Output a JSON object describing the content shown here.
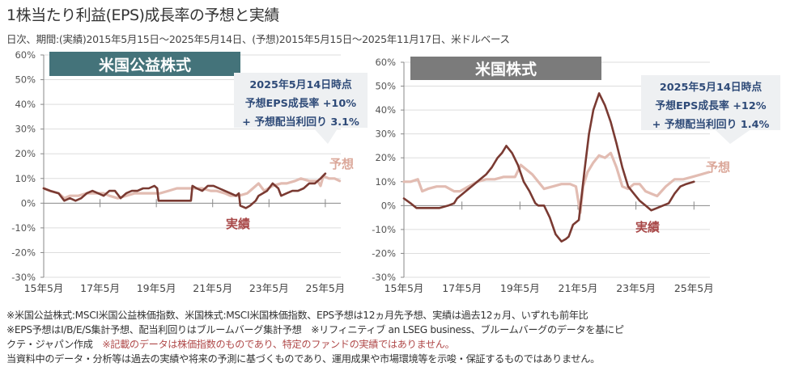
{
  "header": {
    "title": "1株当たり利益(EPS)成長率の予想と実績",
    "subtitle": "日次、期間:(実績)2015年5月15日～2025年5月14日、(予想)2015年5月15日～2025年11月17日、米ドルベース"
  },
  "colors": {
    "actual": "#7a3a32",
    "forecast": "#e2bcb2",
    "utilities_banner": "#44737a",
    "us_banner": "#7b7b7b",
    "callout_text": "#2e4a78",
    "callout_bg": "#eef0f2",
    "label_actual": "#a84848",
    "label_forecast": "#dba89a"
  },
  "chart_data": [
    {
      "type": "line",
      "title": "米国公益株式",
      "ylim": [
        -30,
        60
      ],
      "yticks": [
        "60%",
        "50%",
        "40%",
        "30%",
        "20%",
        "10%",
        "0%",
        "-10%",
        "-20%",
        "-30%"
      ],
      "ytick_values": [
        60,
        50,
        40,
        30,
        20,
        10,
        0,
        -10,
        -20,
        -30
      ],
      "xticks": [
        "15年5月",
        "17年5月",
        "19年5月",
        "21年5月",
        "23年5月",
        "25年5月"
      ],
      "xtick_values": [
        2015.37,
        2017.37,
        2019.37,
        2021.37,
        2023.37,
        2025.37
      ],
      "xlim": [
        2015.37,
        2025.92
      ],
      "callout": {
        "date": "2025年5月14日時点",
        "eps": "予想EPS成長率 +10%",
        "dividend": "+ 予想配当利回り 3.1%"
      },
      "series": [
        {
          "name": "実績",
          "x": [
            2015.37,
            2015.6,
            2015.9,
            2016.1,
            2016.3,
            2016.5,
            2016.7,
            2016.9,
            2017.1,
            2017.3,
            2017.5,
            2017.7,
            2017.9,
            2018.1,
            2018.3,
            2018.5,
            2018.7,
            2018.9,
            2019.1,
            2019.3,
            2019.4,
            2019.45,
            2019.7,
            2020.0,
            2020.2,
            2020.4,
            2020.6,
            2020.65,
            2020.8,
            2021.0,
            2021.2,
            2021.4,
            2021.6,
            2021.8,
            2022.0,
            2022.2,
            2022.3,
            2022.35,
            2022.55,
            2022.7,
            2022.9,
            2023.0,
            2023.3,
            2023.5,
            2023.7,
            2023.8,
            2024.0,
            2024.2,
            2024.4,
            2024.6,
            2024.8,
            2025.0,
            2025.1,
            2025.2,
            2025.37
          ],
          "values": [
            6,
            5,
            4,
            1,
            2,
            1,
            2,
            4,
            5,
            4,
            3,
            5,
            5,
            2,
            4,
            5,
            5,
            6,
            6,
            7,
            6,
            1,
            1,
            1,
            1,
            1,
            1,
            7,
            6,
            5,
            7,
            7,
            6,
            5,
            4,
            3,
            4,
            -1,
            -2,
            -1,
            1,
            3,
            5,
            8,
            6,
            3,
            4,
            5,
            5,
            6,
            8,
            8,
            9,
            10,
            12
          ]
        },
        {
          "name": "予想",
          "x": [
            2015.37,
            2015.6,
            2015.9,
            2016.1,
            2016.3,
            2016.6,
            2016.9,
            2017.2,
            2017.5,
            2017.7,
            2018.0,
            2018.3,
            2018.6,
            2018.9,
            2019.2,
            2019.5,
            2019.8,
            2020.1,
            2020.4,
            2020.7,
            2021.0,
            2021.3,
            2021.5,
            2021.8,
            2022.0,
            2022.3,
            2022.6,
            2022.8,
            2023.0,
            2023.2,
            2023.5,
            2023.8,
            2024.0,
            2024.3,
            2024.5,
            2024.8,
            2025.1,
            2025.2,
            2025.3,
            2025.5,
            2025.7,
            2025.88
          ],
          "values": [
            6,
            5,
            4,
            2,
            3,
            3,
            4,
            4,
            4,
            3,
            2,
            3,
            4,
            4,
            4,
            4,
            5,
            6,
            6,
            6,
            6,
            5,
            5,
            4,
            3,
            3,
            4,
            6,
            8,
            5,
            7,
            8,
            8,
            9,
            10,
            9,
            9,
            7,
            11,
            10,
            10,
            9
          ]
        }
      ],
      "labels": {
        "actual": "実績",
        "forecast": "予想"
      }
    },
    {
      "type": "line",
      "title": "米国株式",
      "ylim": [
        -30,
        60
      ],
      "yticks": [
        "60%",
        "50%",
        "40%",
        "30%",
        "20%",
        "10%",
        "0%",
        "-10%",
        "-20%",
        "-30%"
      ],
      "ytick_values": [
        60,
        50,
        40,
        30,
        20,
        10,
        0,
        -10,
        -20,
        -30
      ],
      "xticks": [
        "15年5月",
        "17年5月",
        "19年5月",
        "21年5月",
        "23年5月",
        "25年5月"
      ],
      "xtick_values": [
        2015.37,
        2017.37,
        2019.37,
        2021.37,
        2023.37,
        2025.37
      ],
      "xlim": [
        2015.37,
        2025.92
      ],
      "callout": {
        "date": "2025年5月14日時点",
        "eps": "予想EPS成長率 +12%",
        "dividend": "+ 予想配当利回り 1.4%"
      },
      "series": [
        {
          "name": "実績",
          "x": [
            2015.37,
            2015.6,
            2015.8,
            2016.0,
            2016.3,
            2016.6,
            2016.9,
            2017.1,
            2017.2,
            2017.5,
            2017.8,
            2018.0,
            2018.2,
            2018.4,
            2018.6,
            2018.75,
            2018.9,
            2019.1,
            2019.3,
            2019.5,
            2019.7,
            2019.9,
            2020.0,
            2020.2,
            2020.4,
            2020.6,
            2020.8,
            2020.95,
            2021.05,
            2021.2,
            2021.4,
            2021.6,
            2021.75,
            2021.9,
            2022.1,
            2022.3,
            2022.5,
            2022.7,
            2022.9,
            2023.1,
            2023.3,
            2023.5,
            2023.7,
            2023.9,
            2024.1,
            2024.3,
            2024.5,
            2024.7,
            2024.9,
            2025.1,
            2025.37
          ],
          "values": [
            3,
            1,
            -1,
            -1,
            -1,
            -1,
            0,
            1,
            3,
            6,
            9,
            11,
            13,
            16,
            20,
            22,
            25,
            22,
            17,
            10,
            6,
            1,
            0,
            0,
            -5,
            -12,
            -15,
            -14,
            -13,
            -8,
            -6,
            15,
            30,
            40,
            47,
            42,
            35,
            26,
            16,
            8,
            5,
            2,
            0,
            -2,
            -1,
            0,
            1,
            5,
            8,
            9,
            10
          ]
        },
        {
          "name": "予想",
          "x": [
            2015.37,
            2015.6,
            2015.85,
            2016.0,
            2016.2,
            2016.5,
            2016.8,
            2017.1,
            2017.3,
            2017.6,
            2017.9,
            2018.2,
            2018.5,
            2018.8,
            2019.0,
            2019.2,
            2019.4,
            2019.6,
            2019.8,
            2020.0,
            2020.2,
            2020.5,
            2020.8,
            2021.1,
            2021.3,
            2021.45,
            2021.55,
            2021.7,
            2021.9,
            2022.1,
            2022.3,
            2022.5,
            2022.7,
            2022.9,
            2023.1,
            2023.3,
            2023.5,
            2023.7,
            2023.9,
            2024.1,
            2024.4,
            2024.7,
            2025.0,
            2025.3,
            2025.6,
            2025.88
          ],
          "values": [
            10,
            10,
            11,
            6,
            7,
            8,
            8,
            6,
            6,
            8,
            10,
            11,
            11,
            12,
            12,
            12,
            17,
            15,
            13,
            10,
            7,
            8,
            9,
            9,
            8,
            -3,
            8,
            14,
            18,
            21,
            20,
            22,
            16,
            8,
            7,
            9,
            9,
            6,
            5,
            4,
            8,
            11,
            11,
            12,
            13,
            14
          ]
        }
      ],
      "labels": {
        "actual": "実績",
        "forecast": "予想"
      }
    }
  ],
  "notes": {
    "line1": "※米国公益株式:MSCI米国公益株価指数、米国株式:MSCI米国株価指数、EPS予想は12ヵ月先予想、実績は過去12ヵ月、いずれも前年比",
    "line2": "※EPS予想はI/B/E/S集計予想、配当利回りはブルームバーグ集計予想　※リフィニティブ an LSEG business、ブルームバーグのデータを基にピ",
    "line3a": "クテ・ジャパン作成",
    "line3b": "※記載のデータは株価指数のものであり、特定のファンドの実績ではありません。",
    "line4": "当資料中のデータ・分析等は過去の実績や将来の予測に基づくものであり、運用成果や市場環境等を示唆・保証するものではありません。"
  }
}
